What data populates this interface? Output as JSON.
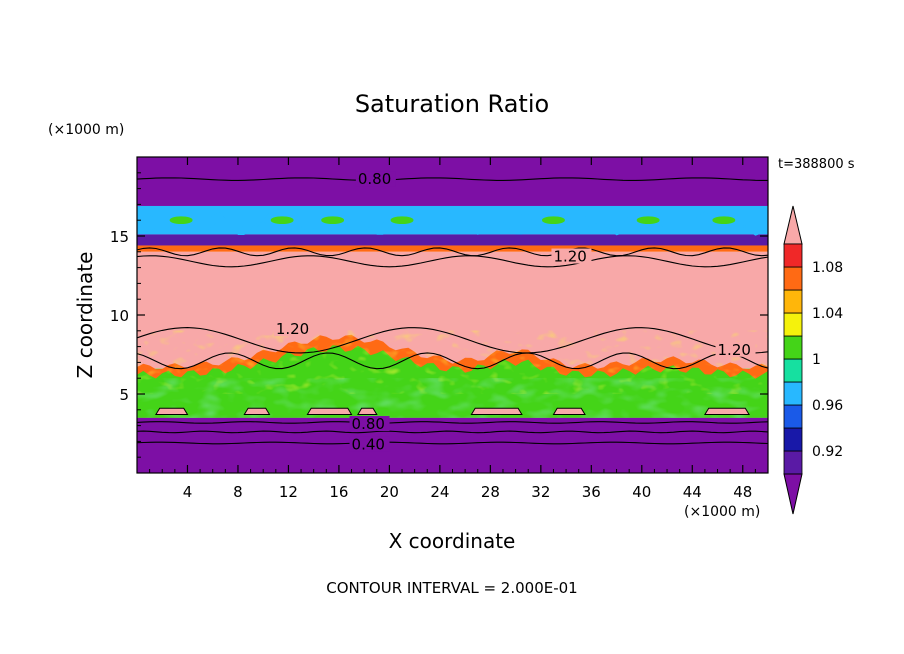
{
  "chart_data": {
    "type": "heatmap",
    "title": "Saturation Ratio",
    "xlabel": "X coordinate",
    "ylabel": "Z coordinate",
    "x_unit": "(×1000 m)",
    "y_unit": "(×1000 m)",
    "time_label": "t=388800 s",
    "footer": "CONTOUR INTERVAL = 2.000E-01",
    "xlim": [
      0,
      50
    ],
    "ylim": [
      0,
      20
    ],
    "x_ticks": [
      4,
      8,
      12,
      16,
      20,
      24,
      28,
      32,
      36,
      40,
      44,
      48
    ],
    "y_ticks": [
      5,
      10,
      15
    ],
    "contour_labels": [
      {
        "text": "0.80",
        "x": 17.5,
        "z": 18.6
      },
      {
        "text": "1.20",
        "x": 33.0,
        "z": 13.7
      },
      {
        "text": "1.20",
        "x": 11.0,
        "z": 9.1
      },
      {
        "text": "1.20",
        "x": 46.0,
        "z": 7.8
      },
      {
        "text": "0.80",
        "x": 17.0,
        "z": 3.1
      },
      {
        "text": "0.40",
        "x": 17.0,
        "z": 1.8
      }
    ],
    "colorbar": {
      "tick_labels": [
        "1.08",
        "1.04",
        "1",
        "0.96",
        "0.92"
      ],
      "tick_values": [
        1.08,
        1.04,
        1.0,
        0.96,
        0.92
      ],
      "levels": [
        0.9,
        0.92,
        0.94,
        0.96,
        0.98,
        1.0,
        1.02,
        1.04,
        1.06,
        1.08,
        1.1
      ],
      "colors": [
        "#5a1aa5",
        "#1818a8",
        "#1a5ae8",
        "#28b8ff",
        "#16e0a0",
        "#44d418",
        "#f5f20c",
        "#ffb60a",
        "#ff6a14",
        "#f02828"
      ],
      "under_color": "#7d0fa5",
      "over_color": "#f8a8a8"
    },
    "layers": [
      {
        "z_top": 20.0,
        "z_bot": 16.9,
        "value": 0.8
      },
      {
        "z_top": 16.9,
        "z_bot": 15.1,
        "value": 0.96
      },
      {
        "z_top": 15.1,
        "z_bot": 14.4,
        "value": 0.91
      },
      {
        "z_top": 14.4,
        "z_bot": 14.0,
        "value": 1.06
      },
      {
        "z_top": 14.0,
        "z_bot": 6.6,
        "value": 1.2
      },
      {
        "z_top": 6.6,
        "z_bot": 3.5,
        "value": 1.0
      },
      {
        "z_top": 3.5,
        "z_bot": 0.0,
        "value": 0.6
      }
    ]
  }
}
